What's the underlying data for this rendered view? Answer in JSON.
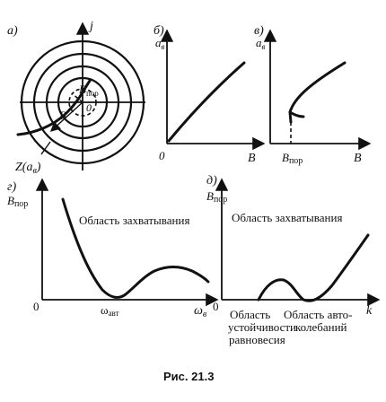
{
  "panel_a": {
    "tag": "а)",
    "axis_j": "j",
    "b_threshold": "B",
    "b_threshold_sub": "пор",
    "origin": "0",
    "b_vector": "B",
    "z_curve": "Z(a",
    "z_curve_sub": "в",
    "z_curve_close": ")"
  },
  "panel_b": {
    "tag": "б)",
    "y_label": "a",
    "y_label_sub": "в",
    "origin": "0",
    "x_label": "B"
  },
  "panel_c": {
    "tag": "в)",
    "y_label": "a",
    "y_label_sub": "в",
    "x_threshold": "B",
    "x_threshold_sub": "пор",
    "x_label": "B"
  },
  "panel_d": {
    "tag": "г)",
    "y_label": "B",
    "y_label_sub": "пор",
    "region_label": "Область захватывания",
    "origin": "0",
    "tick_center": "ω",
    "tick_center_sub": "авт",
    "x_label": "ω",
    "x_label_sub": "в"
  },
  "panel_e": {
    "tag": "д)",
    "y_label": "B",
    "y_label_sub": "пор",
    "region_label": "Область захватывания",
    "origin": "0",
    "x_label": "k",
    "bottom_left": [
      "Область",
      "устойчивости",
      "равновесия"
    ],
    "bottom_right": [
      "Область авто-",
      "колебаний"
    ]
  },
  "caption": "Рис. 21.3"
}
